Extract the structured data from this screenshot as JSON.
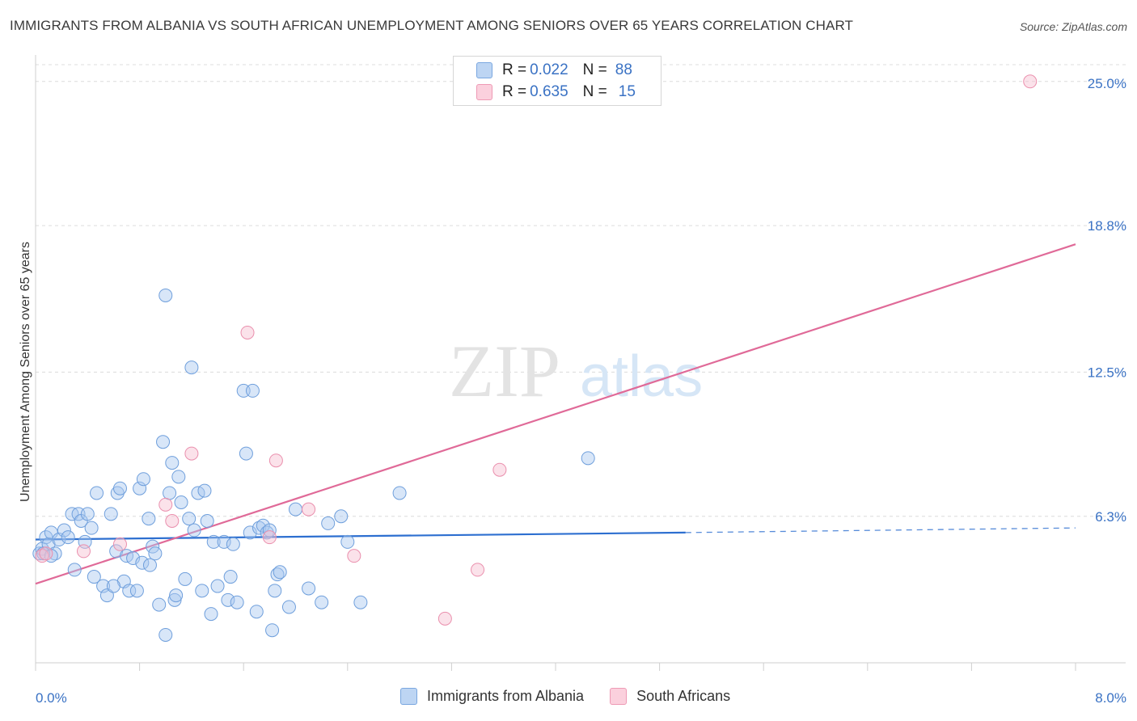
{
  "header": {
    "title": "IMMIGRANTS FROM ALBANIA VS SOUTH AFRICAN UNEMPLOYMENT AMONG SENIORS OVER 65 YEARS CORRELATION CHART",
    "source": "Source: ZipAtlas.com"
  },
  "legend": {
    "rows": [
      {
        "r_label": "R =",
        "r_value": "0.022",
        "n_label": "N =",
        "n_value": "88"
      },
      {
        "r_label": "R =",
        "r_value": "0.635",
        "n_label": "N =",
        "n_value": "15"
      }
    ],
    "bottom": [
      "Immigrants from Albania",
      "South Africans"
    ]
  },
  "watermark": {
    "zip": "ZIP",
    "atlas": "atlas"
  },
  "chart_data": {
    "type": "scatter",
    "title": "IMMIGRANTS FROM ALBANIA VS SOUTH AFRICAN UNEMPLOYMENT AMONG SENIORS OVER 65 YEARS CORRELATION CHART",
    "xlabel": "",
    "ylabel": "Unemployment Among Seniors over 65 years",
    "xlim": [
      0,
      8
    ],
    "ylim": [
      0,
      26.0
    ],
    "x_tick_labels": [
      "0.0%",
      "8.0%"
    ],
    "y_ticks": [
      6.3,
      12.5,
      18.8,
      25.0
    ],
    "y_tick_labels": [
      "6.3%",
      "12.5%",
      "18.8%",
      "25.0%"
    ],
    "grid": "horizontal dashed",
    "legend_position": "top-center",
    "colors": {
      "albania": "#a9c8ef",
      "albania_edge": "#7aa7e0",
      "albania_line": "#2d6fd0",
      "south_africans": "#f7bfd0",
      "south_africans_edge": "#ee9ab5",
      "south_africans_line": "#e06a98",
      "tick_text": "#3a72c4"
    },
    "series": [
      {
        "name": "Immigrants from Albania",
        "R": 0.022,
        "N": 88,
        "trend": {
          "x0": 0.0,
          "y0": 5.3,
          "x1": 5.0,
          "y1": 5.6,
          "dashed_to_x": 8.0,
          "dashed_y_end": 5.8
        },
        "points": [
          [
            0.03,
            4.7
          ],
          [
            0.05,
            4.9
          ],
          [
            0.08,
            5.4
          ],
          [
            0.1,
            5.1
          ],
          [
            0.12,
            5.6
          ],
          [
            0.15,
            4.7
          ],
          [
            0.18,
            5.3
          ],
          [
            0.22,
            5.7
          ],
          [
            0.25,
            5.4
          ],
          [
            0.28,
            6.4
          ],
          [
            0.3,
            4.0
          ],
          [
            0.33,
            6.4
          ],
          [
            0.35,
            6.1
          ],
          [
            0.38,
            5.2
          ],
          [
            0.4,
            6.4
          ],
          [
            0.43,
            5.8
          ],
          [
            0.45,
            3.7
          ],
          [
            0.47,
            7.3
          ],
          [
            0.52,
            3.3
          ],
          [
            0.55,
            2.9
          ],
          [
            0.58,
            6.4
          ],
          [
            0.62,
            4.8
          ],
          [
            0.63,
            7.3
          ],
          [
            0.65,
            7.5
          ],
          [
            0.68,
            3.5
          ],
          [
            0.7,
            4.6
          ],
          [
            0.72,
            3.1
          ],
          [
            0.75,
            4.5
          ],
          [
            0.78,
            3.1
          ],
          [
            0.8,
            7.5
          ],
          [
            0.82,
            4.3
          ],
          [
            0.83,
            7.9
          ],
          [
            0.87,
            6.2
          ],
          [
            0.88,
            4.2
          ],
          [
            0.9,
            5.0
          ],
          [
            0.92,
            4.7
          ],
          [
            0.95,
            2.5
          ],
          [
            0.98,
            9.5
          ],
          [
            1.0,
            1.2
          ],
          [
            1.03,
            7.3
          ],
          [
            1.05,
            8.6
          ],
          [
            1.07,
            2.7
          ],
          [
            1.08,
            2.9
          ],
          [
            1.1,
            8.0
          ],
          [
            1.12,
            6.9
          ],
          [
            1.15,
            3.6
          ],
          [
            1.18,
            6.2
          ],
          [
            1.2,
            12.7
          ],
          [
            1.22,
            5.7
          ],
          [
            1.25,
            7.3
          ],
          [
            1.28,
            3.1
          ],
          [
            1.3,
            7.4
          ],
          [
            1.32,
            6.1
          ],
          [
            1.35,
            2.1
          ],
          [
            1.37,
            5.2
          ],
          [
            1.4,
            3.3
          ],
          [
            1.45,
            5.2
          ],
          [
            1.48,
            2.7
          ],
          [
            1.5,
            3.7
          ],
          [
            1.52,
            5.1
          ],
          [
            1.55,
            2.6
          ],
          [
            1.6,
            11.7
          ],
          [
            1.62,
            9.0
          ],
          [
            1.65,
            5.6
          ],
          [
            1.67,
            11.7
          ],
          [
            1.7,
            2.2
          ],
          [
            1.72,
            5.8
          ],
          [
            1.75,
            5.9
          ],
          [
            1.78,
            5.6
          ],
          [
            1.8,
            5.7
          ],
          [
            1.82,
            1.4
          ],
          [
            1.84,
            3.1
          ],
          [
            1.86,
            3.8
          ],
          [
            1.88,
            3.9
          ],
          [
            1.95,
            2.4
          ],
          [
            2.0,
            6.6
          ],
          [
            2.1,
            3.2
          ],
          [
            2.2,
            2.6
          ],
          [
            2.25,
            6.0
          ],
          [
            2.35,
            6.3
          ],
          [
            2.4,
            5.2
          ],
          [
            2.5,
            2.6
          ],
          [
            2.8,
            7.3
          ],
          [
            4.25,
            8.8
          ],
          [
            1.0,
            15.8
          ],
          [
            0.06,
            4.7
          ],
          [
            0.6,
            3.3
          ],
          [
            0.12,
            4.6
          ]
        ]
      },
      {
        "name": "South Africans",
        "R": 0.635,
        "N": 15,
        "trend": {
          "x0": 0.0,
          "y0": 3.4,
          "x1": 8.0,
          "y1": 18.0
        },
        "points": [
          [
            0.05,
            4.6
          ],
          [
            0.08,
            4.7
          ],
          [
            0.37,
            4.8
          ],
          [
            0.65,
            5.1
          ],
          [
            1.0,
            6.8
          ],
          [
            1.05,
            6.1
          ],
          [
            1.2,
            9.0
          ],
          [
            1.63,
            14.2
          ],
          [
            1.8,
            5.4
          ],
          [
            1.85,
            8.7
          ],
          [
            2.1,
            6.6
          ],
          [
            2.45,
            4.6
          ],
          [
            3.15,
            1.9
          ],
          [
            3.4,
            4.0
          ],
          [
            3.57,
            8.3
          ],
          [
            7.65,
            25.0
          ]
        ]
      }
    ]
  }
}
